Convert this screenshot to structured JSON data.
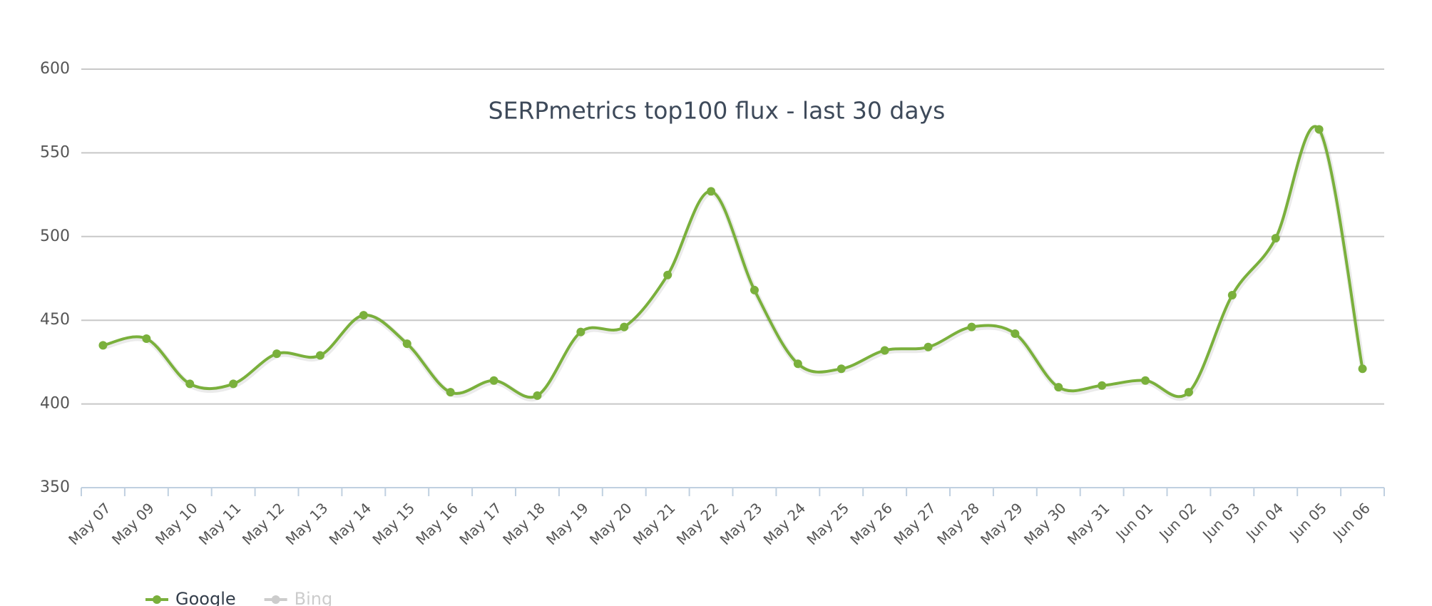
{
  "chart_data": {
    "type": "line",
    "title": "SERPmetrics top100 flux - last 30 days",
    "categories": [
      "May 07",
      "May 09",
      "May 10",
      "May 11",
      "May 12",
      "May 13",
      "May 14",
      "May 15",
      "May 16",
      "May 17",
      "May 18",
      "May 19",
      "May 20",
      "May 21",
      "May 22",
      "May 23",
      "May 24",
      "May 25",
      "May 26",
      "May 27",
      "May 28",
      "May 29",
      "May 30",
      "May 31",
      "Jun 01",
      "Jun 02",
      "Jun 03",
      "Jun 04",
      "Jun 05",
      "Jun 06"
    ],
    "series": [
      {
        "name": "Google",
        "color": "#7ab03c",
        "visible": true,
        "values": [
          435,
          439,
          412,
          412,
          430,
          429,
          453,
          436,
          407,
          414,
          405,
          443,
          446,
          477,
          527,
          468,
          424,
          421,
          432,
          434,
          446,
          442,
          410,
          411,
          414,
          407,
          465,
          499,
          564,
          421
        ]
      },
      {
        "name": "Bing",
        "color": "#cccccc",
        "visible": false
      }
    ],
    "ylim": [
      350,
      600
    ],
    "yticks": [
      350,
      400,
      450,
      500,
      550,
      600
    ],
    "grid": true,
    "smooth": true
  }
}
